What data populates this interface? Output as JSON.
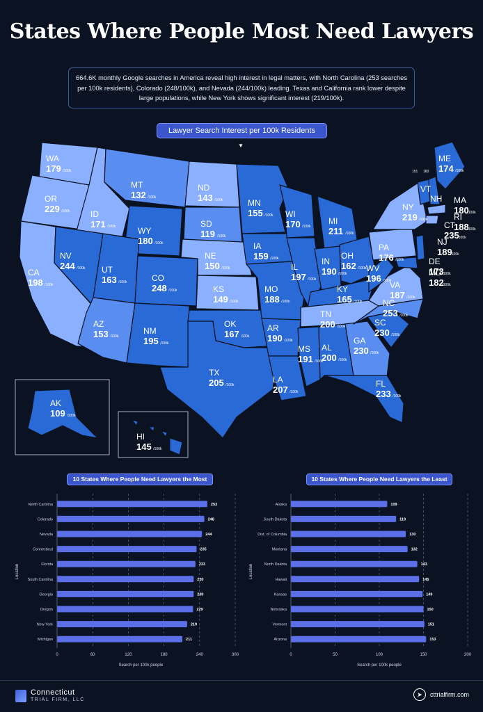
{
  "title": "States Where People Most Need Lawyers",
  "intro": "664.6K monthly Google searches in America reveal high interest in legal matters, with North Carolina (253 searches per 100k residents), Colorado (248/100k), and Nevada (244/100k) leading. Texas and California rank lower despite large populations, while New York shows significant interest (219/100k).",
  "map_heading": "Lawyer Search Interest per 100k Residents",
  "unit_label": "/100k",
  "colors": {
    "light": "#8ab0ff",
    "mid": "#5a8df0",
    "dark": "#2a6ad6",
    "bg": "#0b1322",
    "accent": "#3b55cc"
  },
  "states": [
    {
      "abbr": "WA",
      "value": "179"
    },
    {
      "abbr": "OR",
      "value": "229"
    },
    {
      "abbr": "CA",
      "value": "198"
    },
    {
      "abbr": "ID",
      "value": "171"
    },
    {
      "abbr": "NV",
      "value": "244"
    },
    {
      "abbr": "MT",
      "value": "132"
    },
    {
      "abbr": "WY",
      "value": "180"
    },
    {
      "abbr": "UT",
      "value": "163"
    },
    {
      "abbr": "AZ",
      "value": "153"
    },
    {
      "abbr": "CO",
      "value": "248"
    },
    {
      "abbr": "NM",
      "value": "195"
    },
    {
      "abbr": "ND",
      "value": "143"
    },
    {
      "abbr": "SD",
      "value": "119"
    },
    {
      "abbr": "NE",
      "value": "150"
    },
    {
      "abbr": "KS",
      "value": "149"
    },
    {
      "abbr": "OK",
      "value": "167"
    },
    {
      "abbr": "TX",
      "value": "205"
    },
    {
      "abbr": "MN",
      "value": "155"
    },
    {
      "abbr": "IA",
      "value": "159"
    },
    {
      "abbr": "MO",
      "value": "188"
    },
    {
      "abbr": "AR",
      "value": "190"
    },
    {
      "abbr": "LA",
      "value": "207"
    },
    {
      "abbr": "WI",
      "value": "170"
    },
    {
      "abbr": "IL",
      "value": "197"
    },
    {
      "abbr": "MI",
      "value": "211"
    },
    {
      "abbr": "IN",
      "value": "190"
    },
    {
      "abbr": "OH",
      "value": "162"
    },
    {
      "abbr": "KY",
      "value": "165"
    },
    {
      "abbr": "TN",
      "value": "200"
    },
    {
      "abbr": "MS",
      "value": "191"
    },
    {
      "abbr": "AL",
      "value": "200"
    },
    {
      "abbr": "GA",
      "value": "230"
    },
    {
      "abbr": "FL",
      "value": "233"
    },
    {
      "abbr": "SC",
      "value": "230"
    },
    {
      "abbr": "NC",
      "value": "253"
    },
    {
      "abbr": "VA",
      "value": "187"
    },
    {
      "abbr": "WV",
      "value": "196"
    },
    {
      "abbr": "PA",
      "value": "176"
    },
    {
      "abbr": "NY",
      "value": "219"
    },
    {
      "abbr": "VT",
      "value": "151"
    },
    {
      "abbr": "NH",
      "value": "160"
    },
    {
      "abbr": "ME",
      "value": "174"
    },
    {
      "abbr": "MA",
      "value": "180"
    },
    {
      "abbr": "RI",
      "value": "188"
    },
    {
      "abbr": "CT",
      "value": "235"
    },
    {
      "abbr": "NJ",
      "value": "189"
    },
    {
      "abbr": "DE",
      "value": "173"
    },
    {
      "abbr": "MD",
      "value": "182"
    },
    {
      "abbr": "AK",
      "value": "109"
    },
    {
      "abbr": "HI",
      "value": "145"
    }
  ],
  "chart_data": [
    {
      "type": "bar",
      "title": "10 States Where People Need Lawyers the Most",
      "orientation": "horizontal",
      "categories": [
        "North Carolina",
        "Colorado",
        "Nevada",
        "Connecticut",
        "Florida",
        "South Carolina",
        "Georgia",
        "Oregon",
        "New York",
        "Michigan"
      ],
      "values": [
        253,
        248,
        244,
        235,
        233,
        230,
        230,
        229,
        219,
        211
      ],
      "xlabel": "Search per 100k people",
      "ylabel": "Location",
      "xlim": [
        0,
        300
      ],
      "xticks": [
        "0",
        "60",
        "120",
        "180",
        "240",
        "300"
      ]
    },
    {
      "type": "bar",
      "title": "10 States Where People Need Lawyers the Least",
      "orientation": "horizontal",
      "categories": [
        "Alaska",
        "South Dakota",
        "Dist. of Columbia",
        "Montana",
        "North Dakota",
        "Hawaii",
        "Kansas",
        "Nebraska",
        "Vermont",
        "Arizona"
      ],
      "values": [
        109,
        119,
        130,
        132,
        143,
        145,
        149,
        150,
        151,
        153
      ],
      "xlabel": "Search per 100k people",
      "ylabel": "Location",
      "xlim": [
        0,
        200
      ],
      "xticks": [
        "0",
        "50",
        "100",
        "150",
        "200"
      ]
    }
  ],
  "footer": {
    "brand": "Connecticut",
    "brand_sub": "TRIAL FIRM, LLC",
    "website": "cttrialfirm.com"
  }
}
